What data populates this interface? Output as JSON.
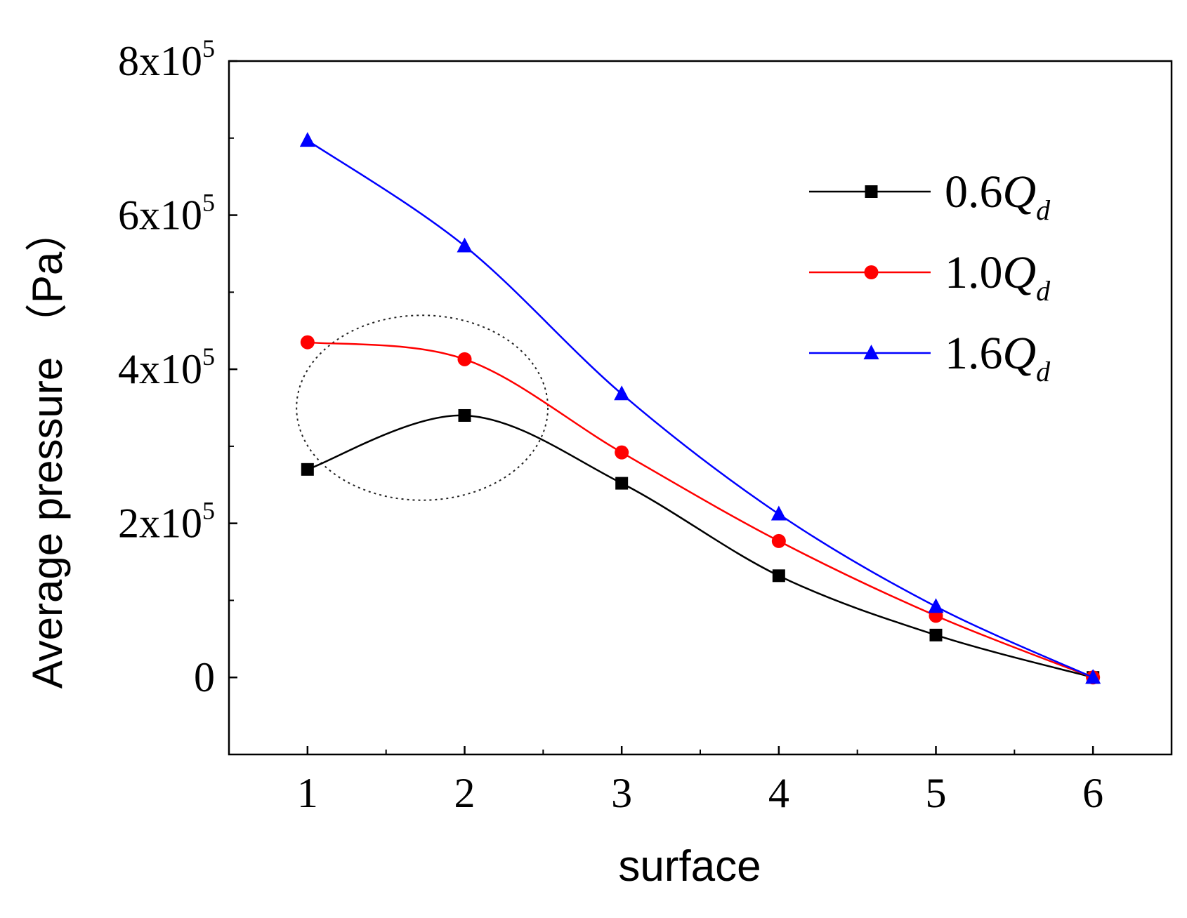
{
  "chart_data": {
    "type": "line",
    "title": "",
    "xlabel": "surface",
    "ylabel": "Average pressure （Pa）",
    "x": [
      1,
      2,
      3,
      4,
      5,
      6
    ],
    "xlim": [
      0.5,
      6.5
    ],
    "ylim": [
      -100000,
      800000
    ],
    "xticks": [
      {
        "value": 1,
        "label": "1"
      },
      {
        "value": 2,
        "label": "2"
      },
      {
        "value": 3,
        "label": "3"
      },
      {
        "value": 4,
        "label": "4"
      },
      {
        "value": 5,
        "label": "5"
      },
      {
        "value": 6,
        "label": "6"
      }
    ],
    "yticks": [
      {
        "value": 0,
        "mantissa": "0",
        "exp": ""
      },
      {
        "value": 200000,
        "mantissa": "2x10",
        "exp": "5"
      },
      {
        "value": 400000,
        "mantissa": "4x10",
        "exp": "5"
      },
      {
        "value": 600000,
        "mantissa": "6x10",
        "exp": "5"
      },
      {
        "value": 800000,
        "mantissa": "8x10",
        "exp": "5"
      }
    ],
    "grid": false,
    "legend_position": "top-right",
    "series": [
      {
        "name": "0.6Qd",
        "coef": "0.6",
        "sym": "Q",
        "sub": "d",
        "color": "#000000",
        "marker": "square",
        "values": [
          270000,
          340000,
          252000,
          132000,
          55000,
          0
        ]
      },
      {
        "name": "1.0Qd",
        "coef": "1.0",
        "sym": "Q",
        "sub": "d",
        "color": "#ff0000",
        "marker": "circle",
        "values": [
          435000,
          413000,
          292000,
          177000,
          80000,
          0
        ]
      },
      {
        "name": "1.6Qd",
        "coef": "1.6",
        "sym": "Q",
        "sub": "d",
        "color": "#0000ff",
        "marker": "triangle",
        "values": [
          697000,
          560000,
          368000,
          212000,
          92000,
          0
        ]
      }
    ],
    "annotations": [
      {
        "type": "dashed-ellipse",
        "label": "",
        "cx_data": 1.73,
        "cy_data": 350000,
        "rx_data": 0.8,
        "ry_data": 120000
      }
    ]
  }
}
